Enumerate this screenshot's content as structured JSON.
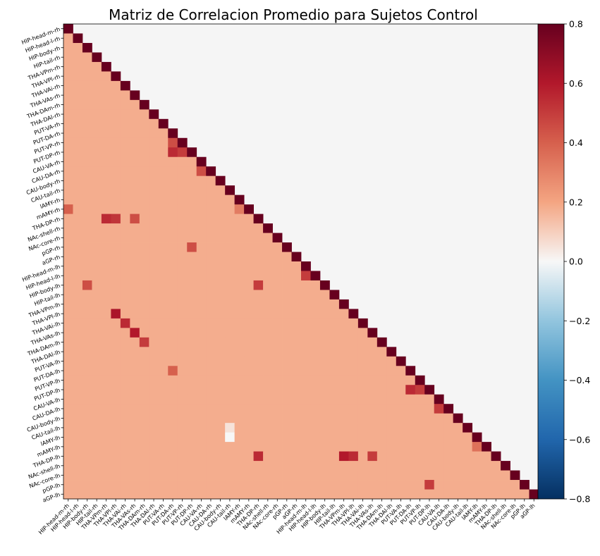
{
  "chart_data": {
    "type": "heatmap",
    "title": "Matriz de Correlacion Promedio para Sujetos Control",
    "triangle": "lower",
    "masked_upper_color": "#f5f5f5",
    "colormap": "RdBu_r",
    "clim": [
      -0.8,
      0.8
    ],
    "colorbar_ticks": [
      "0.8",
      "0.6",
      "0.4",
      "0.2",
      "0.0",
      "−0.2",
      "−0.4",
      "−0.6",
      "−0.8"
    ],
    "colorbar_tick_values": [
      0.8,
      0.6,
      0.4,
      0.2,
      0.0,
      -0.2,
      -0.4,
      -0.6,
      -0.8
    ],
    "labels": [
      "HIP-head-m-rh",
      "HIP-head-l-rh",
      "HIP-body-rh",
      "HIP-tail-rh",
      "THA-VPm-rh",
      "THA-VPl-rh",
      "THA-VAi-rh",
      "THA-VAs-rh",
      "THA-DAm-rh",
      "THA-DAl-rh",
      "PUT-VA-rh",
      "PUT-DA-rh",
      "PUT-VP-rh",
      "PUT-DP-rh",
      "CAU-VA-rh",
      "CAU-DA-rh",
      "CAU-body-rh",
      "CAU-tail-rh",
      "lAMY-rh",
      "mAMY-rh",
      "THA-DP-rh",
      "NAc-shell-rh",
      "NAc-core-rh",
      "pGP-rh",
      "aGP-rh",
      "HIP-head-m-lh",
      "HIP-head-l-lh",
      "HIP-body-lh",
      "HIP-tail-lh",
      "THA-VPm-lh",
      "THA-VPl-lh",
      "THA-VAi-lh",
      "THA-VAs-lh",
      "THA-DAm-lh",
      "THA-DAl-lh",
      "PUT-VA-lh",
      "PUT-DA-lh",
      "PUT-VP-lh",
      "PUT-DP-lh",
      "CAU-VA-lh",
      "CAU-DA-lh",
      "CAU-body-lh",
      "CAU-tail-lh",
      "lAMY-lh",
      "mAMY-lh",
      "THA-DP-lh",
      "NAc-shell-lh",
      "NAc-core-lh",
      "pGP-lh",
      "aGP-lh"
    ],
    "diagonal_value": 1.0,
    "base_offdiag_value": 0.18,
    "notable_pairs": [
      {
        "row": "mAMY-rh",
        "col": "lAMY-rh",
        "value": 0.32
      },
      {
        "row": "mAMY-rh",
        "col": "HIP-head-m-rh",
        "value": 0.4
      },
      {
        "row": "THA-DP-rh",
        "col": "THA-VPm-rh",
        "value": 0.55
      },
      {
        "row": "THA-DP-rh",
        "col": "THA-VPl-rh",
        "value": 0.52
      },
      {
        "row": "THA-DP-rh",
        "col": "THA-VAs-rh",
        "value": 0.45
      },
      {
        "row": "PUT-DP-rh",
        "col": "PUT-DA-rh",
        "value": 0.55
      },
      {
        "row": "PUT-DP-rh",
        "col": "PUT-VP-rh",
        "value": 0.5
      },
      {
        "row": "PUT-VP-rh",
        "col": "PUT-DA-rh",
        "value": 0.45
      },
      {
        "row": "CAU-DA-rh",
        "col": "CAU-VA-rh",
        "value": 0.45
      },
      {
        "row": "pGP-rh",
        "col": "PUT-DP-rh",
        "value": 0.45
      },
      {
        "row": "HIP-head-l-lh",
        "col": "HIP-head-m-lh",
        "value": 0.5
      },
      {
        "row": "HIP-body-lh",
        "col": "HIP-body-rh",
        "value": 0.45
      },
      {
        "row": "HIP-body-lh",
        "col": "THA-DP-rh",
        "value": 0.5
      },
      {
        "row": "THA-VPl-lh",
        "col": "THA-VPl-rh",
        "value": 0.62
      },
      {
        "row": "THA-VAi-lh",
        "col": "THA-VAi-rh",
        "value": 0.55
      },
      {
        "row": "THA-VAs-lh",
        "col": "THA-VAs-rh",
        "value": 0.6
      },
      {
        "row": "THA-DAm-lh",
        "col": "THA-DAm-rh",
        "value": 0.5
      },
      {
        "row": "PUT-DA-lh",
        "col": "PUT-DA-rh",
        "value": 0.4
      },
      {
        "row": "PUT-DP-lh",
        "col": "PUT-DA-lh",
        "value": 0.55
      },
      {
        "row": "PUT-DP-lh",
        "col": "PUT-VP-lh",
        "value": 0.5
      },
      {
        "row": "CAU-DA-lh",
        "col": "CAU-VA-lh",
        "value": 0.5
      },
      {
        "row": "mAMY-lh",
        "col": "lAMY-lh",
        "value": 0.35
      },
      {
        "row": "THA-DP-lh",
        "col": "THA-DP-rh",
        "value": 0.55
      },
      {
        "row": "THA-DP-lh",
        "col": "THA-VPm-lh",
        "value": 0.6
      },
      {
        "row": "THA-DP-lh",
        "col": "THA-VPl-lh",
        "value": 0.55
      },
      {
        "row": "THA-DP-lh",
        "col": "THA-VAs-lh",
        "value": 0.5
      },
      {
        "row": "pGP-lh",
        "col": "PUT-DP-lh",
        "value": 0.5
      },
      {
        "row": "CAU-tail-lh",
        "col": "CAU-tail-rh",
        "value": 0.05
      },
      {
        "row": "lAMY-lh",
        "col": "CAU-tail-rh",
        "value": 0.0
      }
    ]
  }
}
